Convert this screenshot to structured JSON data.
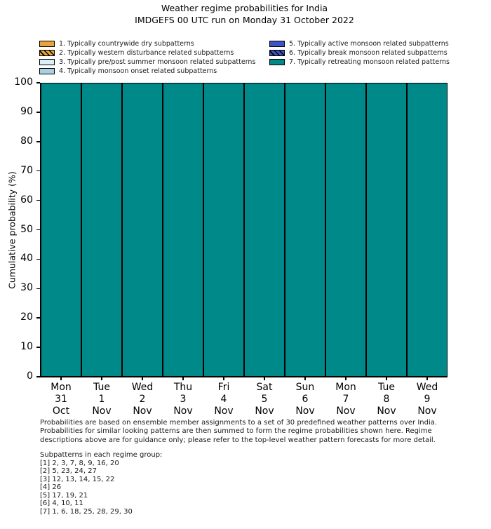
{
  "title": {
    "line1": "Weather regime probabilities for India",
    "line2": "IMDGEFS 00 UTC run on Monday 31 October 2022"
  },
  "chart_data": {
    "type": "stacked_bar",
    "title": "Weather regime probabilities for India",
    "subtitle": "IMDGEFS 00 UTC run on Monday 31 October 2022",
    "ylabel": "Cumulative probability (%)",
    "ylim": [
      0,
      100
    ],
    "yticks": [
      0,
      10,
      20,
      30,
      40,
      50,
      60,
      70,
      80,
      90,
      100
    ],
    "grid": false,
    "legend_position": "top",
    "categories": [
      {
        "day": "Mon",
        "date": "31",
        "month": "Oct"
      },
      {
        "day": "Tue",
        "date": "1",
        "month": "Nov"
      },
      {
        "day": "Wed",
        "date": "2",
        "month": "Nov"
      },
      {
        "day": "Thu",
        "date": "3",
        "month": "Nov"
      },
      {
        "day": "Fri",
        "date": "4",
        "month": "Nov"
      },
      {
        "day": "Sat",
        "date": "5",
        "month": "Nov"
      },
      {
        "day": "Sun",
        "date": "6",
        "month": "Nov"
      },
      {
        "day": "Mon",
        "date": "7",
        "month": "Nov"
      },
      {
        "day": "Tue",
        "date": "8",
        "month": "Nov"
      },
      {
        "day": "Wed",
        "date": "9",
        "month": "Nov"
      }
    ],
    "series": [
      {
        "name": "1. Typically countrywide dry subpatterns",
        "color": "#E8A33C",
        "hatch": false,
        "values": [
          0,
          0,
          0,
          0,
          0,
          0,
          0,
          0,
          0,
          0
        ]
      },
      {
        "name": "2. Typically western disturbance related subpatterns",
        "color": "#E8A33C",
        "hatch": true,
        "values": [
          0,
          0,
          0,
          0,
          0,
          0,
          0,
          0,
          0,
          0
        ]
      },
      {
        "name": "3. Typically pre/post summer monsoon related subpatterns",
        "color": "#DCEFF5",
        "hatch": false,
        "values": [
          0,
          0,
          0,
          0,
          0,
          0,
          0,
          0,
          0,
          0
        ]
      },
      {
        "name": "4. Typically monsoon onset related subpatterns",
        "color": "#A6D1E0",
        "hatch": false,
        "values": [
          0,
          0,
          0,
          0,
          0,
          0,
          0,
          0,
          0,
          0
        ]
      },
      {
        "name": "5. Typically active monsoon related subpatterns",
        "color": "#3D53C6",
        "hatch": false,
        "values": [
          0,
          0,
          0,
          0,
          0,
          0,
          0,
          0,
          0,
          0
        ]
      },
      {
        "name": "6. Typically break monsoon related subpatterns",
        "color": "#3D53C6",
        "hatch": true,
        "values": [
          0,
          0,
          0,
          0,
          0,
          0,
          0,
          0,
          0,
          0
        ]
      },
      {
        "name": "7. Typically retreating monsoon related patterns",
        "color": "#008989",
        "hatch": false,
        "values": [
          100,
          100,
          100,
          100,
          100,
          100,
          100,
          100,
          100,
          100
        ]
      }
    ]
  },
  "footnote": {
    "lines": [
      "Probabilities are based on ensemble member assignments to a set of 30 predefined weather patterns over India.",
      "Probabilities for similar looking patterns are then summed to form the regime probabilities shown here. Regime",
      "descriptions above are for guidance only; please refer to the top-level weather pattern forecasts for more detail."
    ]
  },
  "subpatterns": {
    "heading": "Subpatterns in each regime group:",
    "groups": [
      "[1] 2, 3, 7, 8, 9, 16, 20",
      "[2] 5, 23, 24, 27",
      "[3] 12, 13, 14, 15, 22",
      "[4] 26",
      "[5] 17, 19, 21",
      "[6] 4, 10, 11",
      "[7] 1, 6, 18, 25, 28, 29, 30"
    ]
  }
}
